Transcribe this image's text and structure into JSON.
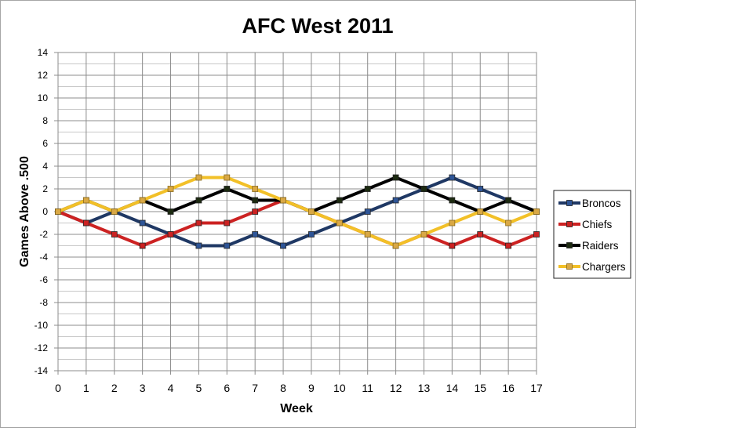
{
  "chart_data": {
    "type": "line",
    "title": "AFC West 2011",
    "xlabel": "Week",
    "ylabel": "Games Above .500",
    "x": [
      0,
      1,
      2,
      3,
      4,
      5,
      6,
      7,
      8,
      9,
      10,
      11,
      12,
      13,
      14,
      15,
      16,
      17
    ],
    "xlim": [
      0,
      17
    ],
    "ylim": [
      -14,
      14
    ],
    "y_ticks": [
      -14,
      -12,
      -10,
      -8,
      -6,
      -4,
      -2,
      0,
      2,
      4,
      6,
      8,
      10,
      12,
      14
    ],
    "grid": true,
    "legend_position": "right",
    "series": [
      {
        "name": "Broncos",
        "color": "#1f3864",
        "marker_fill": "#2e5597",
        "values": [
          0,
          -1,
          0,
          -1,
          -2,
          -3,
          -3,
          -2,
          -3,
          -2,
          -1,
          0,
          1,
          2,
          3,
          2,
          1,
          0
        ]
      },
      {
        "name": "Chiefs",
        "color": "#cc2222",
        "marker_fill": "#cc2222",
        "values": [
          0,
          -1,
          -2,
          -3,
          -2,
          -1,
          -1,
          0,
          1,
          0,
          -1,
          -2,
          -3,
          -2,
          -3,
          -2,
          -3,
          -2
        ]
      },
      {
        "name": "Raiders",
        "color": "#000000",
        "marker_fill": "#1c2a10",
        "values": [
          0,
          1,
          0,
          1,
          0,
          1,
          2,
          1,
          1,
          0,
          1,
          2,
          3,
          2,
          1,
          0,
          1,
          0
        ]
      },
      {
        "name": "Chargers",
        "color": "#f2c028",
        "marker_fill": "#d9a845",
        "values": [
          0,
          1,
          0,
          1,
          2,
          3,
          3,
          2,
          1,
          0,
          -1,
          -2,
          -3,
          -2,
          -1,
          0,
          -1,
          0
        ]
      }
    ]
  }
}
